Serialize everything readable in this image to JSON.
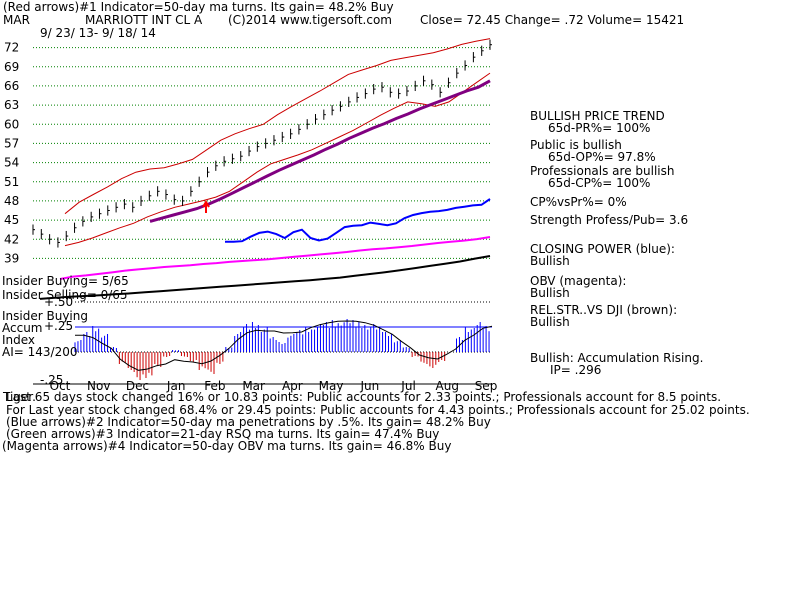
{
  "header": {
    "line1": "(Red arrows)#1 Indicator=50-day ma turns. Its gain= 48.2% Buy",
    "ticker": "MAR",
    "company": "MARRIOTT INT CL A",
    "copyright": "(C)2014 www.tigersoft.com",
    "quote": "Close=  72.45  Change= .72 Volume= 15421",
    "date_range": "9/ 23/ 13-  9/ 18/ 14"
  },
  "right_panel": {
    "trend_title": "BULLISH PRICE TREND",
    "pr": "65d-PR%= 100%",
    "public": "Public is bullish",
    "op": "65d-OP%= 97.8%",
    "professionals": "Professionals are bullish",
    "cp": "65d-CP%= 100%",
    "cpvspr": "CP%vsPr%=  0%",
    "strength": "Strength Profess/Pub= 3.6",
    "closing_power": "CLOSING POWER (blue):",
    "closing_power_val": "Bullish",
    "obv": "OBV (magenta):",
    "obv_val": "Bullish",
    "relstr": "REL.STR..VS DJI (brown):",
    "relstr_val": "Bullish",
    "accum": "Bullish: Accumulation Rising.",
    "ip": "IP=  .296"
  },
  "left_panel": {
    "insider_buying": "Insider Buying= 5/65",
    "insider_selling": "Insider Selling= 0/65",
    "insider_buying2": "Insider Buying",
    "accum_index": "Accum",
    "index": "Index",
    "ai": "AI= 143/200",
    "plus50": "+.50",
    "plus25": "+.25",
    "minus25": "-.25"
  },
  "footer": {
    "line1": "Last 65 days stock changed  16% or  10.83 points:  Public accounts for  2.33 points.;  Professionals account for  8.5 points.",
    "line1_overlap": "Tiger.",
    "line2": "For Last year stock changed  68.4% or  29.45 points:  Public accounts for  4.43 points.;  Professionals account for  25.02 points.",
    "line3": "(Blue arrows)#2 Indicator=50-day ma penetrations by .5%. Its gain= 48.2% Buy",
    "line4": "(Green arrows)#3 Indicator=21-day RSQ ma turns. Its gain= 47.4% Buy",
    "line5": "(Magenta arrows)#4 Indicator=50-day OBV ma turns. Its gain= 46.8% Buy"
  },
  "chart_data": {
    "type": "line",
    "price_axis": {
      "ticks": [
        72,
        69,
        66,
        63,
        60,
        57,
        54,
        51,
        48,
        45,
        42,
        39
      ],
      "range": [
        37.5,
        73.5
      ]
    },
    "months": [
      "Oct",
      "Nov",
      "Dec",
      "Jan",
      "Feb",
      "Mar",
      "Apr",
      "May",
      "Jun",
      "Jul",
      "Aug",
      "Sep"
    ],
    "price": [
      43.5,
      42.8,
      42.0,
      41.5,
      42.5,
      43.8,
      44.8,
      45.5,
      46.0,
      46.5,
      47.0,
      47.5,
      47.0,
      48.0,
      48.8,
      49.5,
      49.0,
      48.2,
      48.0,
      49.5,
      51.0,
      52.5,
      53.5,
      54.2,
      54.6,
      55.0,
      55.8,
      56.5,
      57.0,
      57.5,
      58.0,
      58.5,
      59.2,
      60.0,
      60.8,
      61.5,
      62.2,
      62.8,
      63.5,
      64.2,
      64.8,
      65.5,
      65.8,
      65.0,
      64.8,
      65.2,
      66.0,
      66.8,
      66.2,
      65.0,
      66.5,
      68.0,
      69.2,
      70.5,
      71.5,
      72.45
    ],
    "ma50": [
      44.8,
      45.3,
      45.8,
      46.3,
      46.8,
      47.5,
      48.3,
      49.2,
      50.1,
      51.0,
      51.9,
      52.8,
      53.6,
      54.4,
      55.2,
      56.1,
      56.9,
      57.8,
      58.6,
      59.4,
      60.1,
      60.9,
      61.6,
      62.4,
      63.1,
      63.8,
      64.5,
      65.2,
      65.8,
      66.8
    ],
    "upper_band": [
      46.0,
      47.8,
      49.0,
      50.2,
      51.5,
      52.5,
      53.0,
      53.2,
      53.8,
      54.5,
      56.0,
      57.5,
      58.5,
      59.3,
      60.0,
      61.5,
      62.8,
      64.0,
      65.2,
      66.5,
      67.8,
      68.5,
      69.2,
      70.0,
      70.4,
      70.8,
      71.2,
      71.8,
      72.5,
      73.0,
      73.4
    ],
    "lower_band": [
      41.0,
      41.5,
      42.2,
      43.0,
      43.8,
      44.5,
      45.5,
      46.3,
      47.0,
      47.5,
      48.0,
      48.6,
      49.5,
      51.0,
      52.5,
      53.8,
      54.5,
      55.2,
      56.0,
      57.0,
      58.0,
      59.0,
      60.2,
      61.4,
      62.5,
      63.5,
      63.2,
      62.8,
      63.5,
      65.0,
      66.5,
      68.0
    ],
    "closing_power": [
      41.6,
      41.6,
      41.7,
      42.4,
      43.0,
      43.2,
      42.8,
      42.2,
      43.1,
      43.5,
      42.2,
      41.8,
      42.1,
      43.0,
      43.9,
      44.1,
      44.2,
      44.6,
      44.4,
      44.2,
      44.5,
      45.3,
      45.8,
      46.1,
      46.3,
      46.4,
      46.6,
      46.9,
      47.1,
      47.3,
      47.4,
      48.3
    ],
    "accum_index": [
      0.12,
      0.2,
      0.26,
      0.18,
      0.05,
      -0.12,
      -0.2,
      -0.28,
      -0.26,
      -0.15,
      -0.05,
      0.02,
      -0.05,
      -0.1,
      -0.18,
      -0.22,
      -0.12,
      0.05,
      0.2,
      0.28,
      0.3,
      0.25,
      0.15,
      0.1,
      0.18,
      0.22,
      0.25,
      0.28,
      0.3,
      0.32,
      0.33,
      0.32,
      0.3,
      0.28,
      0.25,
      0.2,
      0.12,
      0.05,
      -0.05,
      -0.12,
      -0.16,
      -0.1,
      0.0,
      0.15,
      0.25,
      0.3,
      0.26
    ],
    "grid": true
  }
}
